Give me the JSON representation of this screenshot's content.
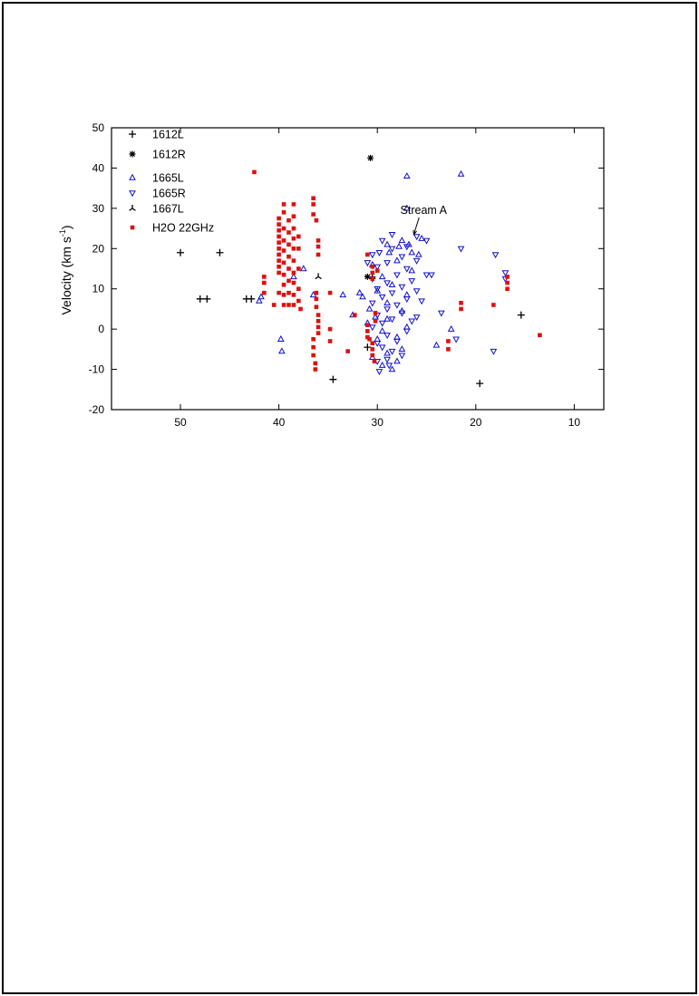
{
  "chart_data": {
    "type": "scatter",
    "title": "",
    "xlabel": "",
    "ylabel_main": "Velocity (km s",
    "ylabel_sup": "-1",
    "ylabel_close": ")",
    "xlim": [
      57,
      7
    ],
    "ylim": [
      -20,
      50
    ],
    "xticks": [
      50,
      40,
      30,
      20,
      10
    ],
    "yticks": [
      50,
      40,
      30,
      20,
      10,
      0,
      -10,
      -20
    ],
    "grid": false,
    "legend_position": "top-left",
    "colors": {
      "black": "#000000",
      "blue": "#1010cc",
      "red": "#dd1111"
    },
    "series": [
      {
        "name": "1612L",
        "marker": "plus",
        "color": "#000000",
        "points": [
          [
            50.0,
            19
          ],
          [
            46.0,
            19
          ],
          [
            48.0,
            7.5
          ],
          [
            47.3,
            7.5
          ],
          [
            43.3,
            7.5
          ],
          [
            42.8,
            7.5
          ],
          [
            34.5,
            -12.5
          ],
          [
            31.0,
            -4.5
          ],
          [
            19.6,
            -13.5
          ],
          [
            15.4,
            3.5
          ]
        ]
      },
      {
        "name": "1612R",
        "marker": "star",
        "color": "#000000",
        "points": [
          [
            30.7,
            42.5
          ],
          [
            31.0,
            13.0
          ]
        ]
      },
      {
        "name": "1665L",
        "marker": "triangle-up",
        "color": "#1010cc",
        "points": [
          [
            27.0,
            38.0
          ],
          [
            21.5,
            38.5
          ],
          [
            27.0,
            30.0
          ],
          [
            25.5,
            22.5
          ],
          [
            27.5,
            22.0
          ],
          [
            29.0,
            21.0
          ],
          [
            26.5,
            19.0
          ],
          [
            28.0,
            17.0
          ],
          [
            30.5,
            16.0
          ],
          [
            26.5,
            14.5
          ],
          [
            29.5,
            13.0
          ],
          [
            28.5,
            11.0
          ],
          [
            30.0,
            9.5
          ],
          [
            27.0,
            8.5
          ],
          [
            31.5,
            8.0
          ],
          [
            29.0,
            6.5
          ],
          [
            30.8,
            5.0
          ],
          [
            27.5,
            4.5
          ],
          [
            30.2,
            3.0
          ],
          [
            29.0,
            2.5
          ],
          [
            31.0,
            1.5
          ],
          [
            27.0,
            0.5
          ],
          [
            29.5,
            -0.5
          ],
          [
            28.0,
            -2.0
          ],
          [
            30.0,
            -2.5
          ],
          [
            24.0,
            -4.0
          ],
          [
            27.5,
            -5.0
          ],
          [
            29.0,
            -6.0
          ],
          [
            28.0,
            -8.0
          ],
          [
            29.5,
            -9.0
          ],
          [
            28.5,
            -10.0
          ],
          [
            30.5,
            -7.0
          ],
          [
            39.8,
            -2.5
          ],
          [
            39.7,
            -5.5
          ],
          [
            41.8,
            8.0
          ],
          [
            42.0,
            7.0
          ],
          [
            38.5,
            13.0
          ],
          [
            37.5,
            15.0
          ],
          [
            33.5,
            8.5
          ],
          [
            36.5,
            8.5
          ],
          [
            32.5,
            3.5
          ],
          [
            31.8,
            9.0
          ],
          [
            22.5,
            0.0
          ],
          [
            28.8,
            19.0
          ],
          [
            27.8,
            20.5
          ],
          [
            26.8,
            21.0
          ],
          [
            25.8,
            18.5
          ]
        ]
      },
      {
        "name": "1665R",
        "marker": "triangle-down",
        "color": "#1010cc",
        "points": [
          [
            26.0,
            23.0
          ],
          [
            28.5,
            23.5
          ],
          [
            29.5,
            22.0
          ],
          [
            25.0,
            22.0
          ],
          [
            27.0,
            20.5
          ],
          [
            28.5,
            20.0
          ],
          [
            29.8,
            19.0
          ],
          [
            30.5,
            18.5
          ],
          [
            27.5,
            18.0
          ],
          [
            26.0,
            17.0
          ],
          [
            29.0,
            16.5
          ],
          [
            30.0,
            15.5
          ],
          [
            27.0,
            15.0
          ],
          [
            28.0,
            13.5
          ],
          [
            25.0,
            13.5
          ],
          [
            30.5,
            12.5
          ],
          [
            26.5,
            12.0
          ],
          [
            29.0,
            11.5
          ],
          [
            27.5,
            10.5
          ],
          [
            30.0,
            10.0
          ],
          [
            26.0,
            9.5
          ],
          [
            28.5,
            9.0
          ],
          [
            29.5,
            8.0
          ],
          [
            27.0,
            7.5
          ],
          [
            25.5,
            7.0
          ],
          [
            30.5,
            6.5
          ],
          [
            28.0,
            6.0
          ],
          [
            29.0,
            5.0
          ],
          [
            27.5,
            4.0
          ],
          [
            30.0,
            3.5
          ],
          [
            28.5,
            2.5
          ],
          [
            26.5,
            2.0
          ],
          [
            29.5,
            1.5
          ],
          [
            30.5,
            0.5
          ],
          [
            27.0,
            -0.5
          ],
          [
            29.0,
            -1.5
          ],
          [
            28.0,
            -3.0
          ],
          [
            30.0,
            -3.5
          ],
          [
            29.5,
            -4.5
          ],
          [
            28.5,
            -5.5
          ],
          [
            27.5,
            -6.5
          ],
          [
            29.0,
            -7.5
          ],
          [
            30.0,
            -8.0
          ],
          [
            28.8,
            -9.0
          ],
          [
            29.8,
            -10.5
          ],
          [
            21.5,
            20.0
          ],
          [
            18.0,
            18.5
          ],
          [
            17.0,
            14.0
          ],
          [
            17.0,
            12.5
          ],
          [
            18.2,
            -5.5
          ],
          [
            24.5,
            13.5
          ],
          [
            23.5,
            4.0
          ],
          [
            22.0,
            -2.5
          ],
          [
            26.0,
            3.0
          ],
          [
            31.0,
            16.5
          ]
        ]
      },
      {
        "name": "1667L",
        "marker": "tri",
        "color": "#000000",
        "points": [
          [
            36.0,
            13.0
          ],
          [
            30.5,
            13.0
          ]
        ]
      },
      {
        "name": "H2O 22GHz",
        "marker": "square",
        "color": "#dd1111",
        "points": [
          [
            42.5,
            39.0
          ],
          [
            40.0,
            27.5
          ],
          [
            40.0,
            26.0
          ],
          [
            40.0,
            24.5
          ],
          [
            40.0,
            23.0
          ],
          [
            40.0,
            21.5
          ],
          [
            40.0,
            20.0
          ],
          [
            40.0,
            18.5
          ],
          [
            40.0,
            17.0
          ],
          [
            40.0,
            15.5
          ],
          [
            40.0,
            14.0
          ],
          [
            39.5,
            31.0
          ],
          [
            39.5,
            29.0
          ],
          [
            39.5,
            25.0
          ],
          [
            39.5,
            22.0
          ],
          [
            39.5,
            19.5
          ],
          [
            39.5,
            16.5
          ],
          [
            39.5,
            13.5
          ],
          [
            39.5,
            11.0
          ],
          [
            39.5,
            8.5
          ],
          [
            39.5,
            6.0
          ],
          [
            39.0,
            27.0
          ],
          [
            39.0,
            24.0
          ],
          [
            39.0,
            21.0
          ],
          [
            39.0,
            18.0
          ],
          [
            39.0,
            15.0
          ],
          [
            39.0,
            12.0
          ],
          [
            39.0,
            9.0
          ],
          [
            39.0,
            6.0
          ],
          [
            38.5,
            31.0
          ],
          [
            38.5,
            28.0
          ],
          [
            38.5,
            25.0
          ],
          [
            38.5,
            22.5
          ],
          [
            38.5,
            20.0
          ],
          [
            38.5,
            17.0
          ],
          [
            38.5,
            14.0
          ],
          [
            38.5,
            11.5
          ],
          [
            38.5,
            8.5
          ],
          [
            38.5,
            6.0
          ],
          [
            38.0,
            23.0
          ],
          [
            38.0,
            20.0
          ],
          [
            38.0,
            15.0
          ],
          [
            38.0,
            10.0
          ],
          [
            38.0,
            7.0
          ],
          [
            37.8,
            5.0
          ],
          [
            41.5,
            13.0
          ],
          [
            41.5,
            11.5
          ],
          [
            41.5,
            9.0
          ],
          [
            40.0,
            9.0
          ],
          [
            40.5,
            6.0
          ],
          [
            36.5,
            32.5
          ],
          [
            36.5,
            31.0
          ],
          [
            36.5,
            28.5
          ],
          [
            36.2,
            27.0
          ],
          [
            36.0,
            22.0
          ],
          [
            36.0,
            20.5
          ],
          [
            36.0,
            18.5
          ],
          [
            36.2,
            9.0
          ],
          [
            36.2,
            7.5
          ],
          [
            36.2,
            5.5
          ],
          [
            36.0,
            3.5
          ],
          [
            36.0,
            2.0
          ],
          [
            36.0,
            0.5
          ],
          [
            36.0,
            -1.0
          ],
          [
            36.5,
            -2.5
          ],
          [
            36.5,
            -4.5
          ],
          [
            36.5,
            -6.5
          ],
          [
            36.3,
            -8.5
          ],
          [
            36.3,
            -10.0
          ],
          [
            34.8,
            9.0
          ],
          [
            34.8,
            0.0
          ],
          [
            34.8,
            -3.0
          ],
          [
            33.0,
            -5.5
          ],
          [
            32.3,
            3.5
          ],
          [
            31.0,
            18.5
          ],
          [
            30.5,
            15.5
          ],
          [
            30.5,
            14.0
          ],
          [
            30.5,
            12.5
          ],
          [
            30.0,
            14.5
          ],
          [
            31.0,
            1.0
          ],
          [
            31.0,
            -0.5
          ],
          [
            31.0,
            -2.0
          ],
          [
            30.5,
            -3.5
          ],
          [
            30.5,
            -5.0
          ],
          [
            30.5,
            -6.5
          ],
          [
            30.3,
            -8.0
          ],
          [
            30.8,
            -2.5
          ],
          [
            30.2,
            4.0
          ],
          [
            30.2,
            2.0
          ],
          [
            21.5,
            6.5
          ],
          [
            21.5,
            5.0
          ],
          [
            22.8,
            -3.0
          ],
          [
            22.8,
            -5.0
          ],
          [
            18.2,
            6.0
          ],
          [
            16.8,
            13.0
          ],
          [
            16.8,
            11.5
          ],
          [
            16.8,
            10.0
          ],
          [
            13.5,
            -1.5
          ]
        ]
      }
    ],
    "annotations": [
      {
        "text": "Stream A",
        "x": 25.3,
        "y": 29.5,
        "arrow_to": [
          26.3,
          23.5
        ]
      }
    ]
  }
}
